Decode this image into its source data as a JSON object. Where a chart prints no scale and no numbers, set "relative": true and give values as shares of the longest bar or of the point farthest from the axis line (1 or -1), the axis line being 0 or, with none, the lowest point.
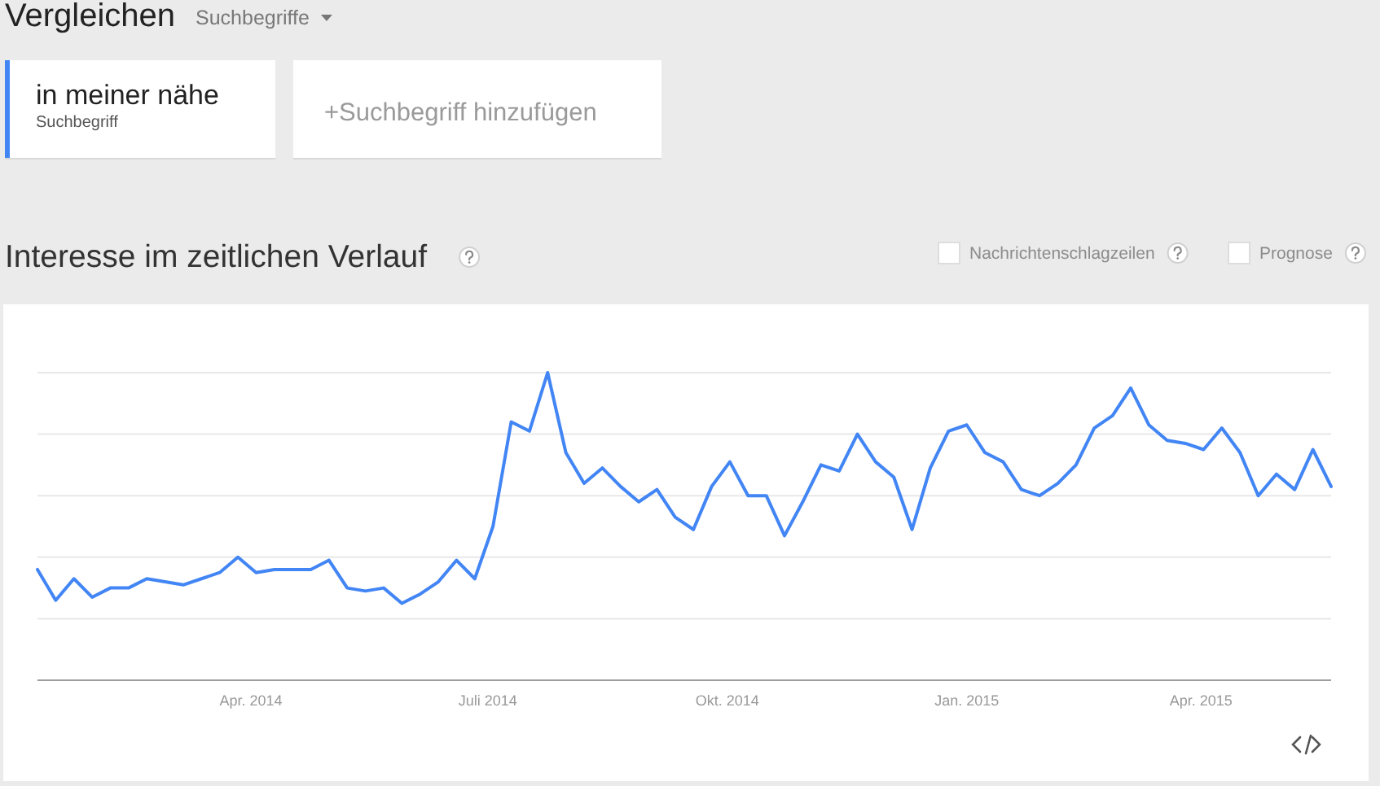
{
  "chart_data": {
    "type": "line",
    "title": "Interesse im zeitlichen Verlauf",
    "annotations": [
      "Vergleichen",
      "Suchbegriffe",
      "Suchbegriff",
      "+Suchbegriff hinzufügen",
      "Nachrichtenschlagzeilen",
      "Prognose"
    ],
    "relative": true,
    "grid": "y",
    "legend": "top left",
    "x": [
      "2014-01-09",
      "2014-01-16",
      "2014-01-23",
      "2014-01-30",
      "2014-02-06",
      "2014-02-13",
      "2014-02-20",
      "2014-02-27",
      "2014-03-06",
      "2014-03-13",
      "2014-03-20",
      "2014-03-27",
      "2014-04-03",
      "2014-04-10",
      "2014-04-17",
      "2014-04-24",
      "2014-05-01",
      "2014-05-08",
      "2014-05-15",
      "2014-05-22",
      "2014-05-29",
      "2014-06-05",
      "2014-06-12",
      "2014-06-19",
      "2014-06-26",
      "2014-07-03",
      "2014-07-10",
      "2014-07-17",
      "2014-07-24",
      "2014-07-31",
      "2014-08-07",
      "2014-08-14",
      "2014-08-21",
      "2014-08-28",
      "2014-09-04",
      "2014-09-11",
      "2014-09-18",
      "2014-09-25",
      "2014-10-02",
      "2014-10-09",
      "2014-10-16",
      "2014-10-23",
      "2014-10-30",
      "2014-11-06",
      "2014-11-13",
      "2014-11-20",
      "2014-11-27",
      "2014-12-04",
      "2014-12-11",
      "2014-12-18",
      "2014-12-25",
      "2015-01-01",
      "2015-01-08",
      "2015-01-15",
      "2015-01-22",
      "2015-01-29",
      "2015-02-05",
      "2015-02-12",
      "2015-02-19",
      "2015-02-26",
      "2015-03-05",
      "2015-03-12",
      "2015-03-19",
      "2015-03-26",
      "2015-04-02",
      "2015-04-09",
      "2015-04-16",
      "2015-04-23",
      "2015-04-30",
      "2015-05-07",
      "2015-05-14",
      "2015-05-21"
    ],
    "xlim": [
      "2014-01-09",
      "2015-05-21"
    ],
    "xticks": [
      {
        "value": "2014-04-01",
        "label": "Apr. 2014"
      },
      {
        "value": "2014-07-01",
        "label": "Juli 2014"
      },
      {
        "value": "2014-10-01",
        "label": "Okt. 2014"
      },
      {
        "value": "2015-01-01",
        "label": "Jan. 2015"
      },
      {
        "value": "2015-04-01",
        "label": "Apr. 2015"
      }
    ],
    "series": [
      {
        "name": "in meiner nähe",
        "color": "#4285f4",
        "values": [
          0.36,
          0.26,
          0.33,
          0.27,
          0.3,
          0.3,
          0.33,
          0.32,
          0.31,
          0.33,
          0.35,
          0.4,
          0.35,
          0.36,
          0.36,
          0.36,
          0.39,
          0.3,
          0.29,
          0.3,
          0.25,
          0.28,
          0.32,
          0.39,
          0.33,
          0.5,
          0.84,
          0.81,
          1,
          0.74,
          0.64,
          0.69,
          0.63,
          0.58,
          0.62,
          0.53,
          0.49,
          0.63,
          0.71,
          0.6,
          0.6,
          0.47,
          0.58,
          0.7,
          0.68,
          0.8,
          0.71,
          0.66,
          0.49,
          0.69,
          0.81,
          0.83,
          0.74,
          0.71,
          0.62,
          0.6,
          0.64,
          0.7,
          0.82,
          0.86,
          0.95,
          0.83,
          0.78,
          0.77,
          0.75,
          0.82,
          0.74,
          0.6,
          0.67,
          0.62,
          0.75,
          0.63
        ]
      }
    ]
  }
}
